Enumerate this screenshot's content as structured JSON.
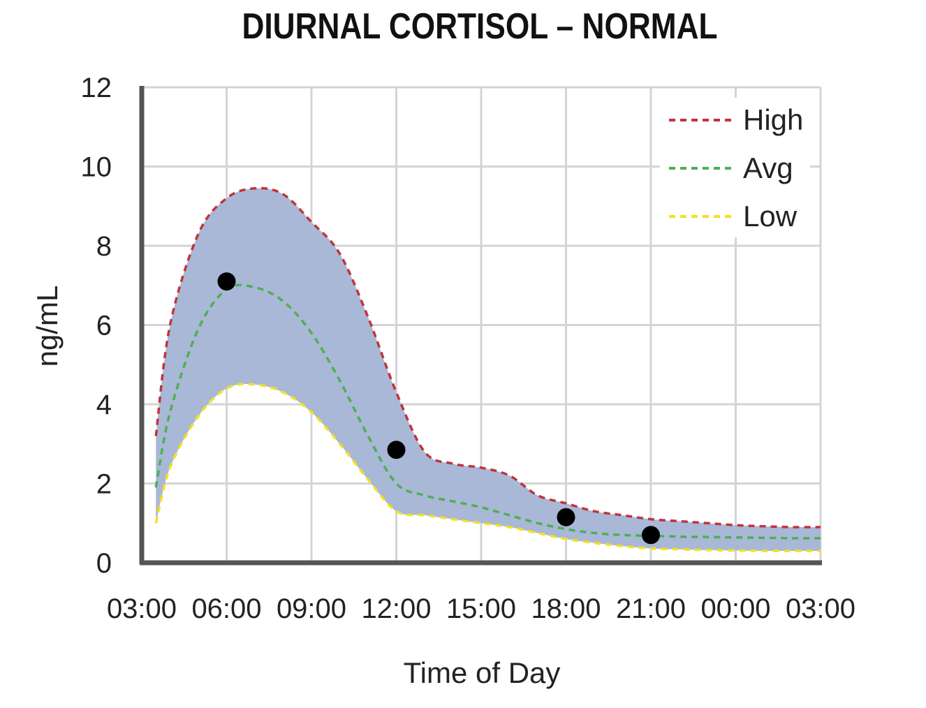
{
  "chart_data": {
    "type": "area",
    "title": "DIURNAL CORTISOL – NORMAL",
    "xlabel": "Time of Day",
    "ylabel": "ng/mL",
    "x_tick_labels": [
      "03:00",
      "06:00",
      "09:00",
      "12:00",
      "15:00",
      "18:00",
      "21:00",
      "00:00",
      "03:00"
    ],
    "y_tick_labels": [
      "0",
      "2",
      "4",
      "6",
      "8",
      "10",
      "12"
    ],
    "xlim": [
      0,
      24
    ],
    "ylim": [
      0,
      12
    ],
    "grid": true,
    "legend_position": "top-right",
    "series": [
      {
        "name": "High",
        "color": "#c0343b",
        "style": "dashed",
        "x": [
          0.5,
          1,
          2,
          3,
          4,
          5,
          6,
          7,
          8,
          9,
          10,
          11,
          12,
          13,
          14,
          15,
          16,
          17,
          18,
          19,
          20,
          21,
          22,
          23,
          24
        ],
        "y": [
          3.2,
          6.0,
          8.3,
          9.2,
          9.45,
          9.3,
          8.6,
          7.8,
          6.2,
          4.3,
          2.8,
          2.5,
          2.4,
          2.2,
          1.7,
          1.5,
          1.3,
          1.2,
          1.1,
          1.05,
          1.0,
          0.95,
          0.92,
          0.9,
          0.9
        ]
      },
      {
        "name": "Avg",
        "color": "#4fae54",
        "style": "dashed",
        "x": [
          0.5,
          1,
          2,
          3,
          4,
          5,
          6,
          7,
          8,
          9,
          10,
          11,
          12,
          13,
          14,
          15,
          16,
          17,
          18,
          19,
          20,
          21,
          22,
          23,
          24
        ],
        "y": [
          1.9,
          3.8,
          5.9,
          6.9,
          6.95,
          6.6,
          5.8,
          4.6,
          3.2,
          2.0,
          1.7,
          1.55,
          1.4,
          1.2,
          1.0,
          0.85,
          0.75,
          0.7,
          0.68,
          0.66,
          0.65,
          0.64,
          0.63,
          0.62,
          0.62
        ]
      },
      {
        "name": "Low",
        "color": "#f2e21f",
        "style": "dashed",
        "x": [
          0.5,
          1,
          2,
          3,
          4,
          5,
          6,
          7,
          8,
          9,
          10,
          11,
          12,
          13,
          14,
          15,
          16,
          17,
          18,
          19,
          20,
          21,
          22,
          23,
          24
        ],
        "y": [
          1.0,
          2.4,
          3.7,
          4.4,
          4.5,
          4.3,
          3.8,
          3.0,
          2.1,
          1.3,
          1.2,
          1.1,
          1.0,
          0.9,
          0.75,
          0.6,
          0.5,
          0.42,
          0.36,
          0.34,
          0.32,
          0.31,
          0.3,
          0.3,
          0.3
        ]
      }
    ],
    "band": {
      "between": [
        "Low",
        "High"
      ],
      "color": "#a9b8d6"
    },
    "markers": {
      "color": "#000000",
      "x": [
        3,
        9,
        15,
        18
      ],
      "y": [
        7.1,
        2.85,
        1.15,
        0.7
      ]
    }
  }
}
